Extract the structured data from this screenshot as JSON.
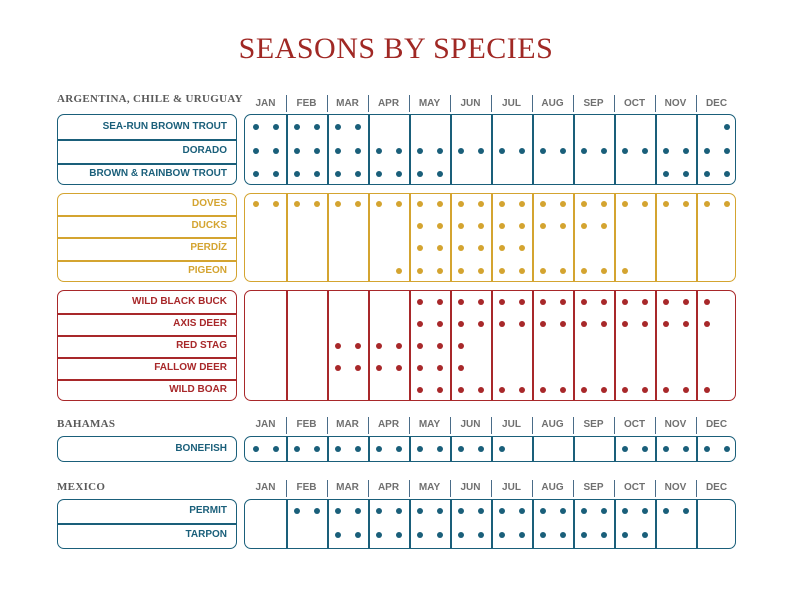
{
  "title": "SEASONS BY SPECIES",
  "months": [
    "JAN",
    "FEB",
    "MAR",
    "APR",
    "MAY",
    "JUN",
    "JUL",
    "AUG",
    "SEP",
    "OCT",
    "NOV",
    "DEC"
  ],
  "colors": {
    "teal": "#1a5f7a",
    "gold": "#d4a430",
    "red": "#a8282a",
    "title": "#a02824",
    "header": "#707070"
  },
  "regions": [
    {
      "name": "ARGENTINA, CHILE & URUGUAY",
      "show_months": true,
      "groups": [
        {
          "color": "teal",
          "species": [
            {
              "name": "SEA-RUN BROWN TROUT",
              "open_half_months": [
                0,
                1,
                2,
                3,
                4,
                5,
                23
              ]
            },
            {
              "name": "DORADO",
              "open_half_months": [
                0,
                1,
                2,
                3,
                4,
                5,
                6,
                7,
                8,
                9,
                10,
                11,
                12,
                13,
                14,
                15,
                16,
                17,
                18,
                19,
                20,
                21,
                22,
                23
              ]
            },
            {
              "name": "BROWN & RAINBOW TROUT",
              "open_half_months": [
                0,
                1,
                2,
                3,
                4,
                5,
                6,
                7,
                8,
                9,
                20,
                21,
                22,
                23
              ]
            }
          ]
        },
        {
          "color": "gold",
          "species": [
            {
              "name": "DOVES",
              "open_half_months": [
                0,
                1,
                2,
                3,
                4,
                5,
                6,
                7,
                8,
                9,
                10,
                11,
                12,
                13,
                14,
                15,
                16,
                17,
                18,
                19,
                20,
                21,
                22,
                23
              ]
            },
            {
              "name": "DUCKS",
              "open_half_months": [
                8,
                9,
                10,
                11,
                12,
                13,
                14,
                15,
                16,
                17
              ]
            },
            {
              "name": "PERDÍZ",
              "open_half_months": [
                8,
                9,
                10,
                11,
                12,
                13
              ]
            },
            {
              "name": "PIGEON",
              "open_half_months": [
                7,
                8,
                9,
                10,
                11,
                12,
                13,
                14,
                15,
                16,
                17,
                18
              ]
            }
          ]
        },
        {
          "color": "red",
          "species": [
            {
              "name": "WILD BLACK BUCK",
              "open_half_months": [
                8,
                9,
                10,
                11,
                12,
                13,
                14,
                15,
                16,
                17,
                18,
                19,
                20,
                21,
                22
              ]
            },
            {
              "name": "AXIS DEER",
              "open_half_months": [
                8,
                9,
                10,
                11,
                12,
                13,
                14,
                15,
                16,
                17,
                18,
                19,
                20,
                21,
                22
              ]
            },
            {
              "name": "RED STAG",
              "open_half_months": [
                4,
                5,
                6,
                7,
                8,
                9,
                10
              ]
            },
            {
              "name": "FALLOW DEER",
              "open_half_months": [
                4,
                5,
                6,
                7,
                8,
                9,
                10
              ]
            },
            {
              "name": "WILD BOAR",
              "open_half_months": [
                8,
                9,
                10,
                11,
                12,
                13,
                14,
                15,
                16,
                17,
                18,
                19,
                20,
                21,
                22
              ]
            }
          ]
        }
      ]
    },
    {
      "name": "BAHAMAS",
      "show_months": true,
      "groups": [
        {
          "color": "teal",
          "species": [
            {
              "name": "BONEFISH",
              "open_half_months": [
                0,
                1,
                2,
                3,
                4,
                5,
                6,
                7,
                8,
                9,
                10,
                11,
                12,
                18,
                19,
                20,
                21,
                22,
                23
              ]
            }
          ]
        }
      ]
    },
    {
      "name": "MEXICO",
      "show_months": true,
      "groups": [
        {
          "color": "teal",
          "species": [
            {
              "name": "PERMIT",
              "open_half_months": [
                2,
                3,
                4,
                5,
                6,
                7,
                8,
                9,
                10,
                11,
                12,
                13,
                14,
                15,
                16,
                17,
                18,
                19,
                20,
                21
              ]
            },
            {
              "name": "TARPON",
              "open_half_months": [
                4,
                5,
                6,
                7,
                8,
                9,
                10,
                11,
                12,
                13,
                14,
                15,
                16,
                17,
                18,
                19
              ]
            }
          ]
        }
      ]
    }
  ]
}
